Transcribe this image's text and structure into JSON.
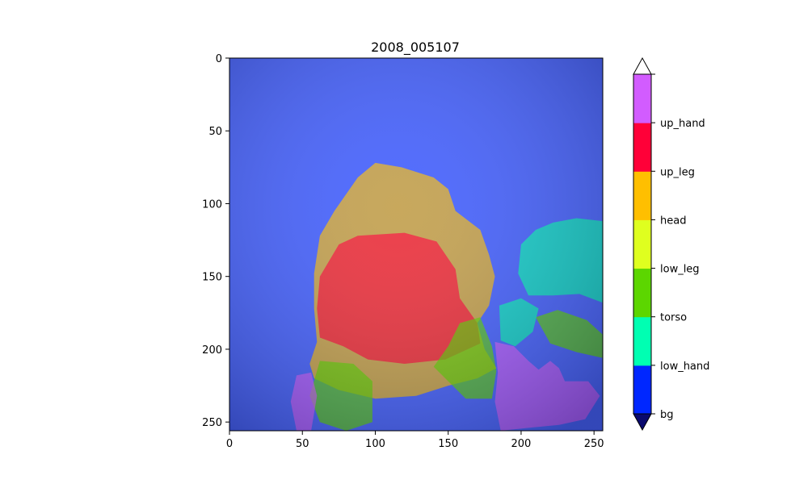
{
  "chart_data": {
    "type": "heatmap",
    "title": "2008_005107",
    "xlabel": "",
    "ylabel": "",
    "xlim": [
      0,
      256
    ],
    "ylim": [
      256,
      0
    ],
    "x_ticks": [
      0,
      50,
      100,
      150,
      200,
      250
    ],
    "y_ticks": [
      0,
      50,
      100,
      150,
      200,
      250
    ],
    "colorbar": {
      "orientation": "vertical",
      "extend": "both",
      "placement": "right",
      "classes": [
        {
          "label": "bg",
          "color": "#0027ff"
        },
        {
          "label": "low_hand",
          "color": "#00ffb2"
        },
        {
          "label": "torso",
          "color": "#5cd600"
        },
        {
          "label": "low_leg",
          "color": "#dfff1f"
        },
        {
          "label": "head",
          "color": "#ffbf00"
        },
        {
          "label": "up_leg",
          "color": "#ff0038"
        },
        {
          "label": "up_hand",
          "color": "#d25cff"
        }
      ],
      "under_color": "#0a0a6e",
      "over_color": "#ffffff"
    },
    "segments": [
      {
        "cls": "bg",
        "points": [
          [
            0,
            0
          ],
          [
            256,
            0
          ],
          [
            256,
            256
          ],
          [
            0,
            256
          ]
        ]
      },
      {
        "cls": "head",
        "points": [
          [
            88,
            82
          ],
          [
            100,
            72
          ],
          [
            118,
            75
          ],
          [
            140,
            82
          ],
          [
            150,
            90
          ],
          [
            155,
            105
          ],
          [
            172,
            118
          ],
          [
            178,
            135
          ],
          [
            182,
            150
          ],
          [
            178,
            170
          ],
          [
            170,
            182
          ],
          [
            175,
            200
          ],
          [
            183,
            213
          ],
          [
            170,
            220
          ],
          [
            150,
            225
          ],
          [
            128,
            232
          ],
          [
            100,
            234
          ],
          [
            75,
            228
          ],
          [
            58,
            220
          ],
          [
            55,
            210
          ],
          [
            60,
            195
          ],
          [
            58,
            172
          ],
          [
            58,
            148
          ],
          [
            62,
            122
          ],
          [
            72,
            105
          ]
        ]
      },
      {
        "cls": "up_leg",
        "points": [
          [
            75,
            128
          ],
          [
            88,
            122
          ],
          [
            120,
            120
          ],
          [
            142,
            126
          ],
          [
            155,
            145
          ],
          [
            158,
            165
          ],
          [
            170,
            182
          ],
          [
            172,
            196
          ],
          [
            148,
            207
          ],
          [
            120,
            210
          ],
          [
            95,
            207
          ],
          [
            78,
            198
          ],
          [
            62,
            192
          ],
          [
            60,
            172
          ],
          [
            62,
            150
          ]
        ]
      },
      {
        "cls": "torso",
        "points": [
          [
            62,
            208
          ],
          [
            85,
            210
          ],
          [
            98,
            222
          ],
          [
            98,
            250
          ],
          [
            80,
            256
          ],
          [
            62,
            250
          ],
          [
            55,
            232
          ]
        ]
      },
      {
        "cls": "torso",
        "points": [
          [
            158,
            182
          ],
          [
            172,
            178
          ],
          [
            180,
            198
          ],
          [
            183,
            215
          ],
          [
            180,
            234
          ],
          [
            162,
            234
          ],
          [
            150,
            222
          ],
          [
            140,
            212
          ],
          [
            150,
            198
          ]
        ]
      },
      {
        "cls": "torso",
        "points": [
          [
            210,
            178
          ],
          [
            225,
            173
          ],
          [
            245,
            180
          ],
          [
            256,
            190
          ],
          [
            256,
            206
          ],
          [
            238,
            202
          ],
          [
            220,
            196
          ]
        ]
      },
      {
        "cls": "low_hand",
        "points": [
          [
            185,
            170
          ],
          [
            200,
            165
          ],
          [
            212,
            172
          ],
          [
            208,
            188
          ],
          [
            196,
            198
          ],
          [
            186,
            194
          ]
        ]
      },
      {
        "cls": "low_hand",
        "points": [
          [
            200,
            128
          ],
          [
            210,
            118
          ],
          [
            222,
            113
          ],
          [
            238,
            110
          ],
          [
            256,
            112
          ],
          [
            256,
            168
          ],
          [
            240,
            162
          ],
          [
            222,
            163
          ],
          [
            205,
            163
          ],
          [
            198,
            148
          ]
        ]
      },
      {
        "cls": "up_hand",
        "points": [
          [
            46,
            218
          ],
          [
            56,
            216
          ],
          [
            60,
            232
          ],
          [
            56,
            256
          ],
          [
            46,
            256
          ],
          [
            42,
            236
          ]
        ]
      },
      {
        "cls": "up_hand",
        "points": [
          [
            182,
            195
          ],
          [
            195,
            198
          ],
          [
            205,
            208
          ],
          [
            212,
            214
          ],
          [
            220,
            208
          ],
          [
            226,
            213
          ],
          [
            230,
            222
          ],
          [
            246,
            222
          ],
          [
            254,
            232
          ],
          [
            244,
            248
          ],
          [
            226,
            252
          ],
          [
            205,
            254
          ],
          [
            186,
            256
          ],
          [
            182,
            236
          ],
          [
            184,
            216
          ]
        ]
      }
    ]
  }
}
